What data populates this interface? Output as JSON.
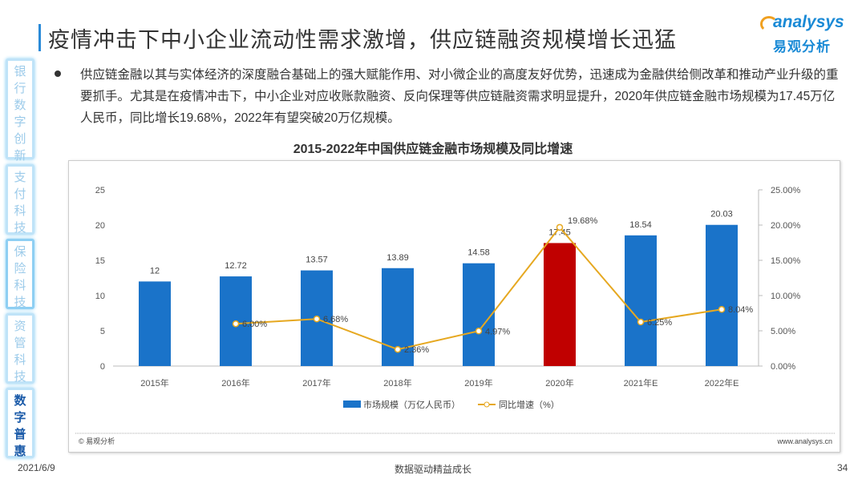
{
  "header": {
    "title": "疫情冲击下中小企业流动性需求激增，供应链融资规模增长迅猛",
    "logo_en": "analysys",
    "logo_cn": "易观分析"
  },
  "sidebar": {
    "items": [
      {
        "label": "银行数字创新",
        "active": false
      },
      {
        "label": "支付科技",
        "active": false
      },
      {
        "label": "保险科技",
        "active": false
      },
      {
        "label": "资管科技",
        "active": false
      },
      {
        "label": "数字普惠",
        "active": true
      }
    ]
  },
  "body": {
    "paragraph": "供应链金融以其与实体经济的深度融合基础上的强大赋能作用、对小微企业的高度友好优势，迅速成为金融供给侧改革和推动产业升级的重要抓手。尤其是在疫情冲击下，中小企业对应收账款融资、反向保理等供应链融资需求明显提升，2020年供应链金融市场规模为17.45万亿人民币，同比增长19.68%，2022年有望突破20万亿规模。"
  },
  "chart_data": {
    "type": "bar+line",
    "title": "2015-2022年中国供应链金融市场规模及同比增速",
    "categories": [
      "2015年",
      "2016年",
      "2017年",
      "2018年",
      "2019年",
      "2020年",
      "2021年E",
      "2022年E"
    ],
    "series": [
      {
        "name": "市场规模（万亿人民币）",
        "type": "bar",
        "axis": "left",
        "color": "#1a73c9",
        "highlight_color": "#c00000",
        "highlight_index": 5,
        "values": [
          12,
          12.72,
          13.57,
          13.89,
          14.58,
          17.45,
          18.54,
          20.03
        ],
        "labels": [
          "12",
          "12.72",
          "13.57",
          "13.89",
          "14.58",
          "17.45",
          "18.54",
          "20.03"
        ]
      },
      {
        "name": "同比增速（%）",
        "type": "line",
        "axis": "right",
        "color": "#e6a820",
        "values": [
          null,
          6.0,
          6.68,
          2.36,
          4.97,
          19.68,
          6.25,
          8.04
        ],
        "labels": [
          "",
          "6.00%",
          "6.68%",
          "2.36%",
          "4.97%",
          "19.68%",
          "6.25%",
          "8.04%"
        ]
      }
    ],
    "y_left": {
      "range": [
        0,
        25
      ],
      "ticks": [
        "0",
        "5",
        "10",
        "15",
        "20",
        "25"
      ]
    },
    "y_right": {
      "range": [
        0,
        25
      ],
      "ticks": [
        "0.00%",
        "5.00%",
        "10.00%",
        "15.00%",
        "20.00%",
        "25.00%"
      ]
    },
    "legend_position": "bottom",
    "grid": false,
    "source": "© 易观分析",
    "website": "www.analysys.cn"
  },
  "footer": {
    "date": "2021/6/9",
    "slogan": "数据驱动精益成长",
    "page": "34"
  }
}
